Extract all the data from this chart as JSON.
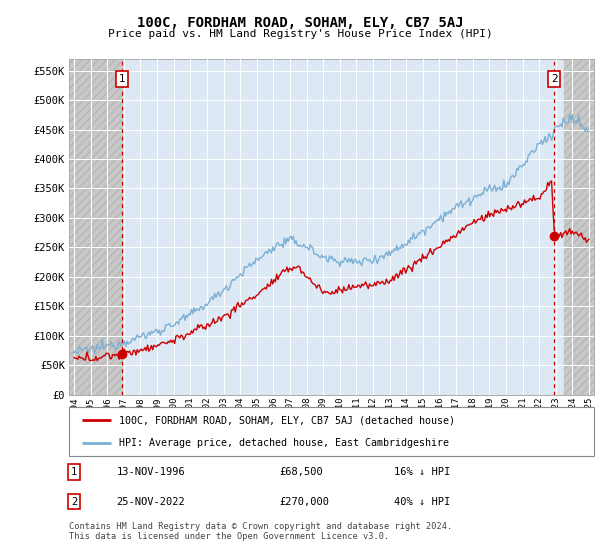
{
  "title": "100C, FORDHAM ROAD, SOHAM, ELY, CB7 5AJ",
  "subtitle": "Price paid vs. HM Land Registry's House Price Index (HPI)",
  "legend_line1": "100C, FORDHAM ROAD, SOHAM, ELY, CB7 5AJ (detached house)",
  "legend_line2": "HPI: Average price, detached house, East Cambridgeshire",
  "annotation1_label": "1",
  "annotation1_date": "13-NOV-1996",
  "annotation1_price": "£68,500",
  "annotation1_pct": "16% ↓ HPI",
  "annotation2_label": "2",
  "annotation2_date": "25-NOV-2022",
  "annotation2_price": "£270,000",
  "annotation2_pct": "40% ↓ HPI",
  "footer": "Contains HM Land Registry data © Crown copyright and database right 2024.\nThis data is licensed under the Open Government Licence v3.0.",
  "property_color": "#cc0000",
  "hpi_color": "#7bafd4",
  "plot_bg_color": "#dce9f5",
  "hatch_bg_color": "#d0d0d0",
  "grid_color": "#ffffff",
  "point1_x": 1996.88,
  "point1_y": 68500,
  "point2_x": 2022.9,
  "point2_y": 270000,
  "vline1_x": 1996.88,
  "vline2_x": 2022.9,
  "xmin": 1993.7,
  "xmax": 2025.3,
  "ylim": [
    0,
    570000
  ],
  "yticks": [
    0,
    50000,
    100000,
    150000,
    200000,
    250000,
    300000,
    350000,
    400000,
    450000,
    500000,
    550000
  ],
  "ytick_labels": [
    "£0",
    "£50K",
    "£100K",
    "£150K",
    "£200K",
    "£250K",
    "£300K",
    "£350K",
    "£400K",
    "£450K",
    "£500K",
    "£550K"
  ]
}
